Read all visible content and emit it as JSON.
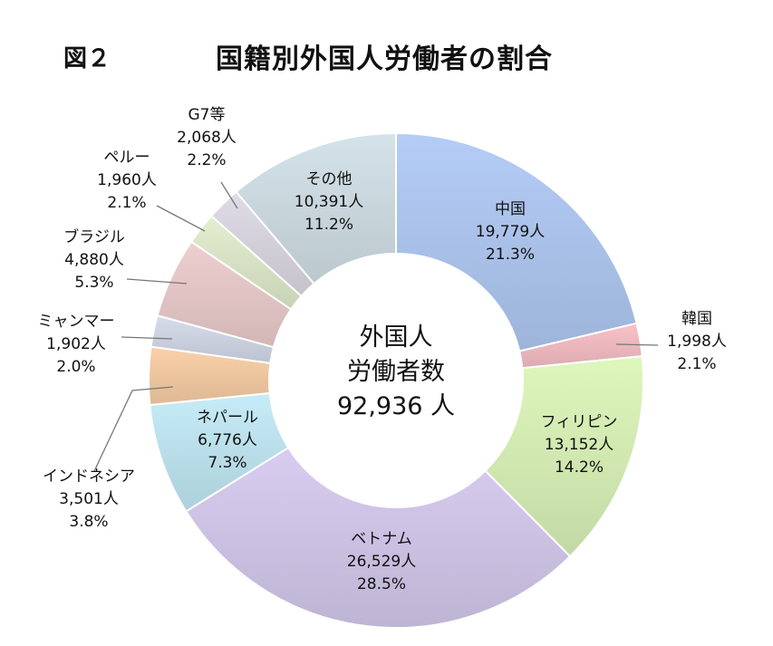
{
  "figure_number": "図２",
  "chart_data": {
    "type": "pie",
    "variant": "donut",
    "title": "国籍別外国人労働者の割合",
    "center_text": [
      "外国人",
      "労働者数",
      "92,936 人"
    ],
    "total": 92936,
    "slices": [
      {
        "name": "中国",
        "count_label": "19,779人",
        "pct_label": "21.3%",
        "value": 19779,
        "color": "#b4cdf7"
      },
      {
        "name": "韓国",
        "count_label": "1,998人",
        "pct_label": "2.1%",
        "value": 1998,
        "color": "#f9c2c8"
      },
      {
        "name": "フィリピン",
        "count_label": "13,152人",
        "pct_label": "14.2%",
        "value": 13152,
        "color": "#def7bc"
      },
      {
        "name": "ベトナム",
        "count_label": "26,529人",
        "pct_label": "28.5%",
        "value": 26529,
        "color": "#d8cdf0"
      },
      {
        "name": "ネパール",
        "count_label": "6,776人",
        "pct_label": "7.3%",
        "value": 6776,
        "color": "#c5ecf8"
      },
      {
        "name": "インドネシア",
        "count_label": "3,501人",
        "pct_label": "3.8%",
        "value": 3501,
        "color": "#fbd1a8"
      },
      {
        "name": "ミャンマー",
        "count_label": "1,902人",
        "pct_label": "2.0%",
        "value": 1902,
        "color": "#d7dcec"
      },
      {
        "name": "ブラジル",
        "count_label": "4,880人",
        "pct_label": "5.3%",
        "value": 4880,
        "color": "#efcfcf"
      },
      {
        "name": "ペルー",
        "count_label": "1,960人",
        "pct_label": "2.1%",
        "value": 1960,
        "color": "#e3efcf"
      },
      {
        "name": "G7等",
        "count_label": "2,068人",
        "pct_label": "2.2%",
        "value": 2068,
        "color": "#e0dce7"
      },
      {
        "name": "その他",
        "count_label": "10,391人",
        "pct_label": "11.2%",
        "value": 10391,
        "color": "#d4e3ea"
      }
    ]
  }
}
